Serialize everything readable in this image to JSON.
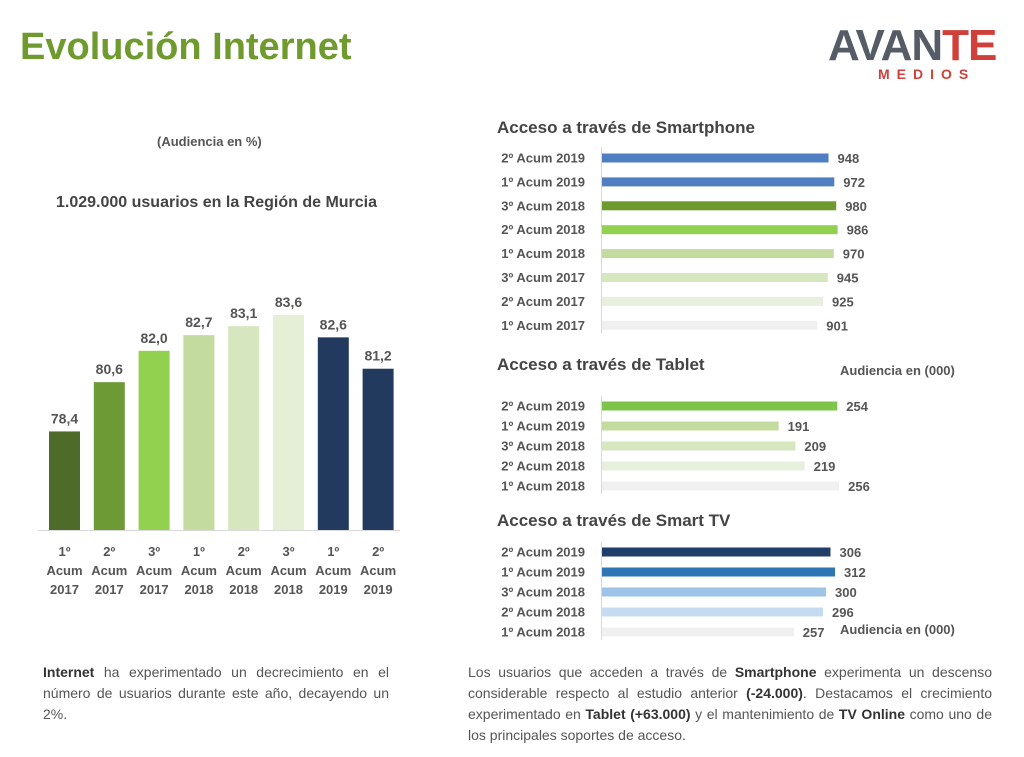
{
  "header": {
    "title": "Evolución Internet",
    "logo_main_a": "AVAN",
    "logo_main_b": "TE",
    "logo_sub": "MEDIOS"
  },
  "left": {
    "subtitle": "(Audiencia en %)",
    "users_label": "1.029.000 usuarios en la Región de Murcia"
  },
  "chart_data": [
    {
      "type": "bar",
      "title": "",
      "categories": [
        [
          "1º",
          "Acum",
          "2017"
        ],
        [
          "2º",
          "Acum",
          "2017"
        ],
        [
          "3º",
          "Acum",
          "2017"
        ],
        [
          "1º",
          "Acum",
          "2018"
        ],
        [
          "2º",
          "Acum",
          "2018"
        ],
        [
          "3º",
          "Acum",
          "2018"
        ],
        [
          "1º",
          "Acum",
          "2019"
        ],
        [
          "2º",
          "Acum",
          "2019"
        ]
      ],
      "values": [
        78.4,
        80.6,
        82.0,
        82.7,
        83.1,
        83.6,
        82.6,
        81.2
      ],
      "value_labels": [
        "78,4",
        "80,6",
        "82,0",
        "82,7",
        "83,1",
        "83,6",
        "82,6",
        "81,2"
      ],
      "colors": [
        "#4e6b2a",
        "#6e9a36",
        "#92d050",
        "#c4dba0",
        "#d6e6bf",
        "#e4efd5",
        "#223a5e",
        "#223a5e"
      ],
      "ylim": [
        74,
        84
      ],
      "xlabel": "",
      "ylabel": "",
      "grid": false
    },
    {
      "type": "bar",
      "orientation": "horizontal",
      "title": "Acceso a través de Smartphone",
      "categories": [
        "2º Acum 2019",
        "1º Acum 2019",
        "3º Acum 2018",
        "2º Acum 2018",
        "1º Acum 2018",
        "3º Acum 2017",
        "2º Acum 2017",
        "1º Acum 2017"
      ],
      "values": [
        948,
        972,
        980,
        986,
        970,
        945,
        925,
        901
      ],
      "colors": [
        "#4f7fc0",
        "#4f7fc0",
        "#6e9a2e",
        "#92d050",
        "#c4dba0",
        "#d6e6bf",
        "#e7f0dc",
        "#f0f0f0"
      ],
      "xlim": [
        0,
        1000
      ]
    },
    {
      "type": "bar",
      "orientation": "horizontal",
      "title": "Acceso a través de Tablet",
      "note": "Audiencia en (000)",
      "categories": [
        "2º Acum 2019",
        "1º Acum 2019",
        "3º Acum 2018",
        "2º Acum 2018",
        "1º Acum 2018"
      ],
      "values": [
        254,
        191,
        209,
        219,
        256
      ],
      "colors": [
        "#7ec44a",
        "#c4dba0",
        "#d6e6bf",
        "#e7f0dc",
        "#f0f0f0"
      ],
      "xlim": [
        0,
        258
      ]
    },
    {
      "type": "bar",
      "orientation": "horizontal",
      "title": "Acceso a través de Smart TV",
      "note": "Audiencia en (000)",
      "categories": [
        "2º Acum 2019",
        "1º Acum 2019",
        "3º Acum 2018",
        "2º Acum 2018",
        "1º Acum 2018"
      ],
      "values": [
        306,
        312,
        300,
        296,
        257
      ],
      "colors": [
        "#1f3f6a",
        "#2e75b6",
        "#9dc3e6",
        "#c5dcf0",
        "#f0f0f0"
      ],
      "xlim": [
        0,
        320
      ]
    }
  ],
  "text": {
    "left_b": "Internet",
    "left_rest": " ha experimentado un decrecimiento en el número de usuarios durante este año, decayendo un 2%.",
    "right_1": "Los usuarios que acceden a través de ",
    "right_b1": "Smartphone",
    "right_2": " experimenta un descenso considerable respecto al estudio anterior ",
    "right_b2": "(-24.000)",
    "right_3": ". Destacamos el crecimiento experimentado en ",
    "right_b3": "Tablet (+63.000)",
    "right_4": " y el mantenimiento de ",
    "right_b4": "TV Online",
    "right_5": " como uno de los principales soportes de acceso."
  }
}
